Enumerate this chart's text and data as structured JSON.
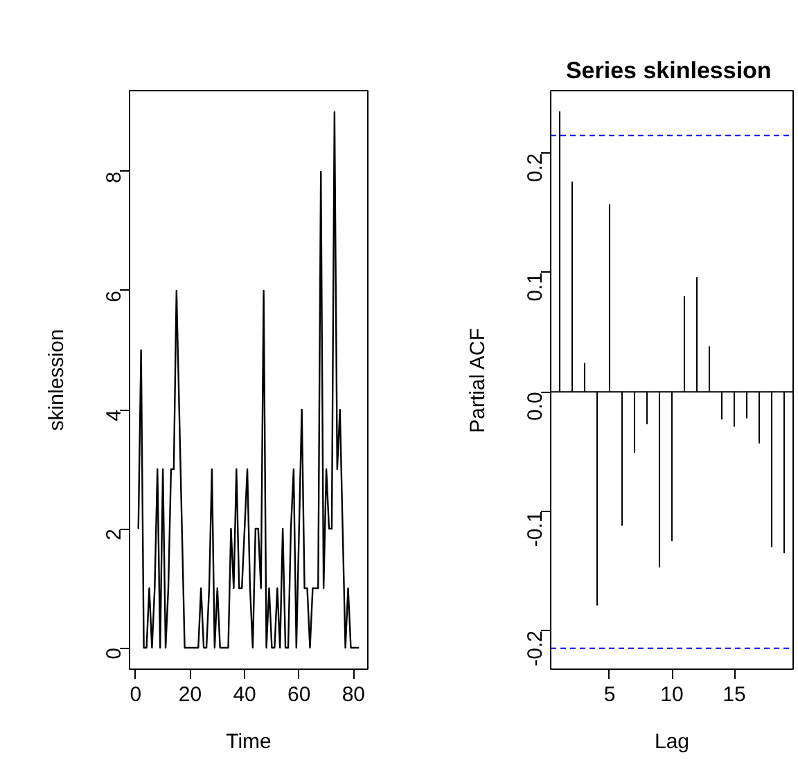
{
  "chart_data": [
    {
      "type": "line",
      "xlabel": "Time",
      "ylabel": "skinlession",
      "x": [
        1,
        2,
        3,
        4,
        5,
        6,
        7,
        8,
        9,
        10,
        11,
        12,
        13,
        14,
        15,
        16,
        17,
        18,
        19,
        20,
        21,
        22,
        23,
        24,
        25,
        26,
        27,
        28,
        29,
        30,
        31,
        32,
        33,
        34,
        35,
        36,
        37,
        38,
        39,
        40,
        41,
        42,
        43,
        44,
        45,
        46,
        47,
        48,
        49,
        50,
        51,
        52,
        53,
        54,
        55,
        56,
        57,
        58,
        59,
        60,
        61,
        62,
        63,
        64,
        65,
        66,
        67,
        68,
        69,
        70,
        71,
        72,
        73,
        74,
        75,
        76,
        77,
        78,
        79,
        80,
        81,
        82
      ],
      "series": [
        {
          "color": "#000000",
          "values": [
            2,
            5,
            0,
            0,
            1,
            0,
            1,
            3,
            0,
            3,
            0,
            1,
            3,
            3,
            6,
            4,
            2,
            0,
            0,
            0,
            0,
            0,
            0,
            1,
            0,
            0,
            1,
            3,
            0,
            1,
            0,
            0,
            0,
            0,
            2,
            1,
            3,
            1,
            1,
            2,
            3,
            1,
            0,
            2,
            2,
            1,
            6,
            0,
            1,
            0,
            0,
            1,
            0,
            2,
            0,
            0,
            2,
            3,
            0,
            2,
            4,
            1,
            1,
            0,
            1,
            1,
            1,
            8,
            1,
            3,
            2,
            2,
            9,
            3,
            4,
            2,
            0,
            1,
            0,
            0,
            0,
            0
          ]
        }
      ],
      "xlim": [
        -2.24,
        85.24
      ],
      "ylim": [
        -0.36,
        9.36
      ],
      "xticks": [
        0,
        20,
        40,
        60,
        80
      ],
      "yticks": [
        0,
        2,
        4,
        6,
        8
      ],
      "line_style": "solid",
      "grid": false
    },
    {
      "type": "bar",
      "title": "Series  skinlession",
      "xlabel": "Lag",
      "ylabel": "Partial ACF",
      "x": [
        1,
        2,
        3,
        4,
        5,
        6,
        7,
        8,
        9,
        10,
        11,
        12,
        13,
        14,
        15,
        16,
        17,
        18,
        19
      ],
      "series": [
        {
          "color": "#000000",
          "values": [
            0.235,
            0.176,
            0.024,
            -0.179,
            0.157,
            -0.112,
            -0.051,
            -0.027,
            -0.147,
            -0.125,
            0.08,
            0.096,
            0.038,
            -0.023,
            -0.029,
            -0.022,
            -0.043,
            -0.13,
            -0.135
          ]
        }
      ],
      "xlim": [
        0.28,
        19.72
      ],
      "ylim": [
        -0.2325,
        0.2525
      ],
      "xticks": [
        5,
        10,
        15
      ],
      "yticks": [
        {
          "value": -0.2,
          "label": "-0.2"
        },
        {
          "value": -0.1,
          "label": "-0.1"
        },
        {
          "value": 0,
          "label": "0.0"
        },
        {
          "value": 0.1,
          "label": "0.1"
        },
        {
          "value": 0.2,
          "label": "0.2"
        }
      ],
      "ref_lines": [
        {
          "axis": "y",
          "value": 0,
          "color": "#000000",
          "line_style": "solid"
        },
        {
          "axis": "y",
          "value": 0.215,
          "color": "#0000ff",
          "line_style": "dashed"
        },
        {
          "axis": "y",
          "value": -0.215,
          "color": "#0000ff",
          "line_style": "dashed"
        }
      ],
      "grid": false
    }
  ]
}
